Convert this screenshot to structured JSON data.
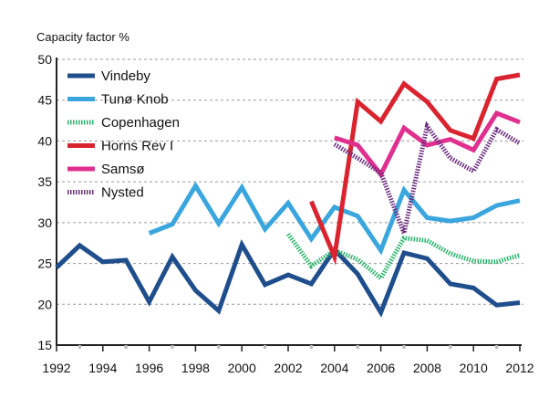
{
  "chart_data": {
    "type": "line",
    "title": "",
    "ylabel": "Capacity factor %",
    "xlabel": "",
    "xlim": [
      1992,
      2012
    ],
    "ylim": [
      15,
      50
    ],
    "xticks": [
      1992,
      1994,
      1996,
      1998,
      2000,
      2002,
      2004,
      2006,
      2008,
      2010,
      2012
    ],
    "yticks": [
      15,
      20,
      25,
      30,
      35,
      40,
      45,
      50
    ],
    "grid": true,
    "legend_position": "top-left",
    "series": [
      {
        "name": "Vindeby",
        "color": "#1f4e8c",
        "dotted": false,
        "points": [
          [
            1992,
            24.5
          ],
          [
            1993,
            27.2
          ],
          [
            1994,
            25.2
          ],
          [
            1995,
            25.4
          ],
          [
            1996,
            20.3
          ],
          [
            1997,
            25.8
          ],
          [
            1998,
            21.7
          ],
          [
            1999,
            19.2
          ],
          [
            2000,
            27.3
          ],
          [
            2001,
            22.4
          ],
          [
            2002,
            23.6
          ],
          [
            2003,
            22.5
          ],
          [
            2004,
            26.7
          ],
          [
            2005,
            23.7
          ],
          [
            2006,
            19.0
          ],
          [
            2007,
            26.3
          ],
          [
            2008,
            25.6
          ],
          [
            2009,
            22.5
          ],
          [
            2010,
            22.0
          ],
          [
            2011,
            19.9
          ],
          [
            2012,
            20.2
          ]
        ]
      },
      {
        "name": "Tunø Knob",
        "color": "#3aa6dd",
        "dotted": false,
        "points": [
          [
            1996,
            28.7
          ],
          [
            1997,
            29.8
          ],
          [
            1998,
            34.5
          ],
          [
            1999,
            29.9
          ],
          [
            2000,
            34.3
          ],
          [
            2001,
            29.2
          ],
          [
            2002,
            32.4
          ],
          [
            2003,
            28.0
          ],
          [
            2004,
            31.9
          ],
          [
            2005,
            30.8
          ],
          [
            2006,
            26.6
          ],
          [
            2007,
            34.0
          ],
          [
            2008,
            30.6
          ],
          [
            2009,
            30.2
          ],
          [
            2010,
            30.6
          ],
          [
            2011,
            32.1
          ],
          [
            2012,
            32.7
          ]
        ]
      },
      {
        "name": "Copenhagen",
        "color": "#2bb36b",
        "dotted": true,
        "points": [
          [
            2002,
            28.6
          ],
          [
            2003,
            24.7
          ],
          [
            2004,
            26.6
          ],
          [
            2005,
            25.5
          ],
          [
            2006,
            23.2
          ],
          [
            2007,
            28.1
          ],
          [
            2008,
            27.8
          ],
          [
            2009,
            26.2
          ],
          [
            2010,
            25.3
          ],
          [
            2011,
            25.2
          ],
          [
            2012,
            26.0
          ]
        ]
      },
      {
        "name": "Horns Rev I",
        "color": "#d9242f",
        "dotted": false,
        "points": [
          [
            2003,
            32.6
          ],
          [
            2004,
            25.8
          ],
          [
            2005,
            44.8
          ],
          [
            2006,
            42.4
          ],
          [
            2007,
            47.0
          ],
          [
            2008,
            44.8
          ],
          [
            2009,
            41.3
          ],
          [
            2010,
            40.3
          ],
          [
            2011,
            47.6
          ],
          [
            2012,
            48.1
          ]
        ]
      },
      {
        "name": "Samsø",
        "color": "#e0308f",
        "dotted": false,
        "points": [
          [
            2004,
            40.4
          ],
          [
            2005,
            39.5
          ],
          [
            2006,
            35.9
          ],
          [
            2007,
            41.6
          ],
          [
            2008,
            39.5
          ],
          [
            2009,
            40.2
          ],
          [
            2010,
            38.9
          ],
          [
            2011,
            43.4
          ],
          [
            2012,
            42.3
          ]
        ]
      },
      {
        "name": "Nysted",
        "color": "#6a2c7e",
        "dotted": true,
        "points": [
          [
            2004,
            39.6
          ],
          [
            2005,
            37.9
          ],
          [
            2006,
            36.1
          ],
          [
            2007,
            28.7
          ],
          [
            2008,
            41.8
          ],
          [
            2009,
            37.9
          ],
          [
            2010,
            36.3
          ],
          [
            2011,
            41.4
          ],
          [
            2012,
            39.7
          ]
        ]
      }
    ]
  }
}
